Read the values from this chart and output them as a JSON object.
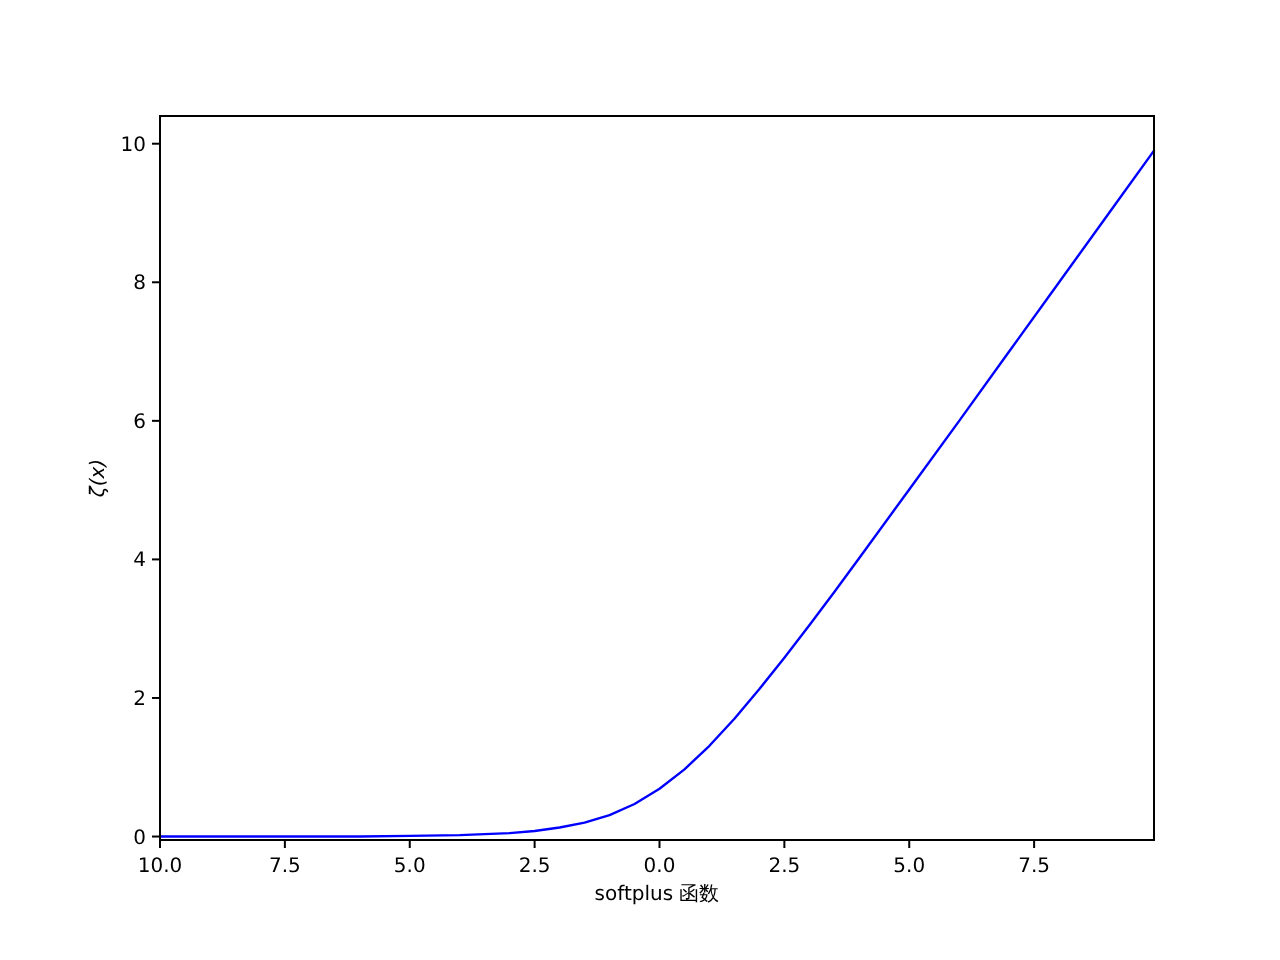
{
  "chart_data": {
    "type": "line",
    "xlabel": "softplus 函数",
    "ylabel": "ζ(x)",
    "x": [
      -10,
      -8,
      -6,
      -5,
      -4,
      -3,
      -2.5,
      -2,
      -1.5,
      -1,
      -0.5,
      0,
      0.5,
      1,
      1.5,
      2,
      2.5,
      3,
      3.5,
      4,
      5,
      6,
      7,
      8,
      9,
      9.9
    ],
    "series": [
      {
        "color": "#0000ff",
        "values": [
          0,
          0,
          0,
          0.01,
          0.02,
          0.05,
          0.08,
          0.13,
          0.2,
          0.31,
          0.47,
          0.69,
          0.97,
          1.31,
          1.7,
          2.13,
          2.58,
          3.05,
          3.53,
          4.02,
          5.01,
          6.0,
          7.0,
          8.0,
          9.0,
          9.9
        ]
      }
    ],
    "xlim": [
      -10,
      9.9
    ],
    "ylim": [
      -0.05,
      10.4
    ],
    "xticks": [
      {
        "value": -10,
        "label": "10.0"
      },
      {
        "value": -7.5,
        "label": "7.5"
      },
      {
        "value": -5,
        "label": "5.0"
      },
      {
        "value": -2.5,
        "label": "2.5"
      },
      {
        "value": 0,
        "label": "0.0"
      },
      {
        "value": 2.5,
        "label": "2.5"
      },
      {
        "value": 5,
        "label": "5.0"
      },
      {
        "value": 7.5,
        "label": "7.5"
      }
    ],
    "yticks": [
      0,
      2,
      4,
      6,
      8,
      10
    ]
  }
}
